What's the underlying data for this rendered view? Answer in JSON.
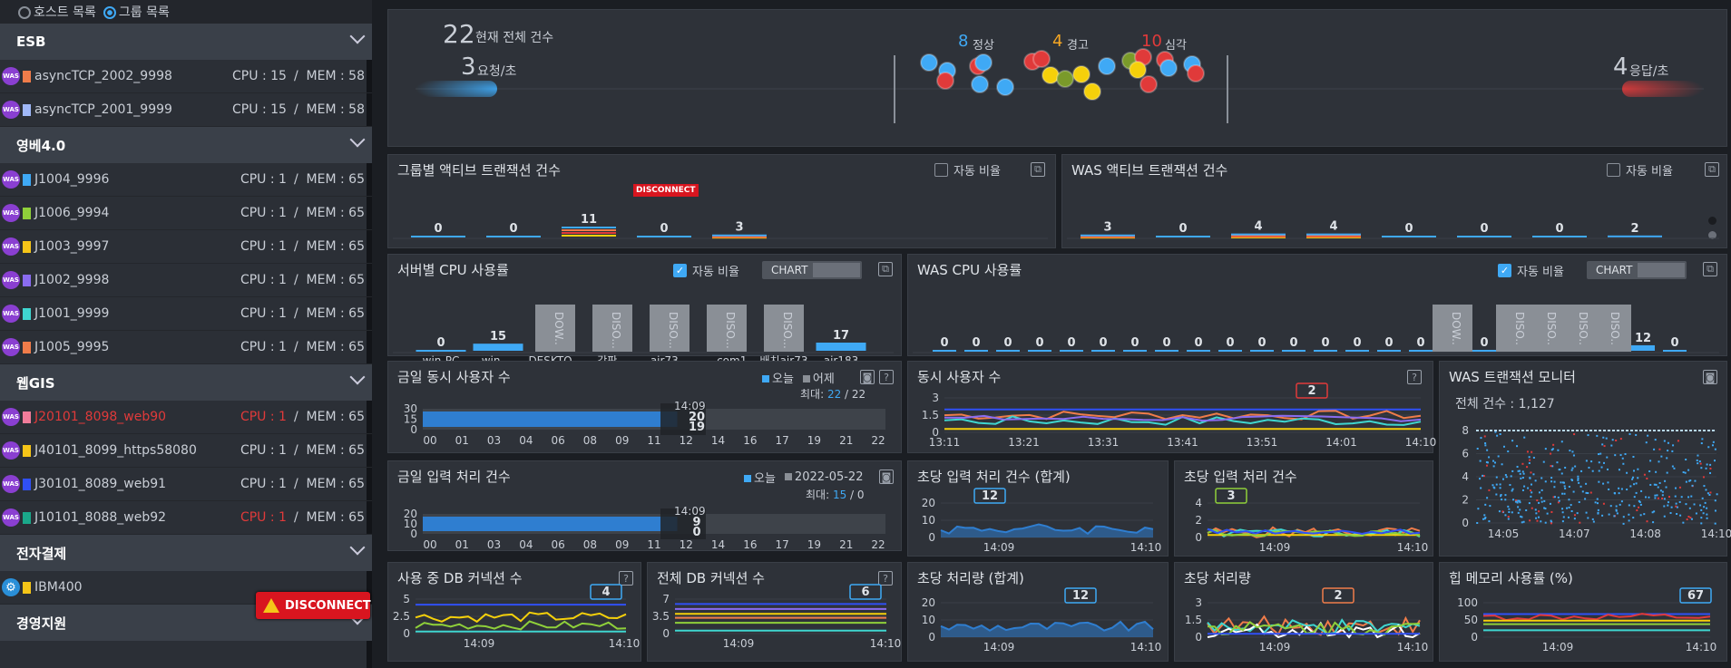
{
  "sidebar": {
    "radio_host": "호스트 목록",
    "radio_group": "그룹 목록",
    "groups": [
      {
        "name": "ESB",
        "hosts": [
          {
            "name": "asyncTCP_2002_9998",
            "color": "#f07c4a",
            "cpu": "CPU : 15",
            "mem": "/  MEM : 58",
            "alert": false
          },
          {
            "name": "asyncTCP_2001_9999",
            "color": "#a0b8f8",
            "cpu": "CPU : 15",
            "mem": "/  MEM : 58",
            "alert": false
          }
        ]
      },
      {
        "name": "영베4.0",
        "hosts": [
          {
            "name": "J1004_9996",
            "color": "#3fa9f5",
            "cpu": "CPU : 1",
            "mem": "/  MEM : 65"
          },
          {
            "name": "J1006_9994",
            "color": "#8fd03a",
            "cpu": "CPU : 1",
            "mem": "/  MEM : 65"
          },
          {
            "name": "J1003_9997",
            "color": "#f5c518",
            "cpu": "CPU : 1",
            "mem": "/  MEM : 65"
          },
          {
            "name": "J1002_9998",
            "color": "#8a6cf0",
            "cpu": "CPU : 1",
            "mem": "/  MEM : 65"
          },
          {
            "name": "J1001_9999",
            "color": "#3fd6d0",
            "cpu": "CPU : 1",
            "mem": "/  MEM : 65"
          },
          {
            "name": "J1005_9995",
            "color": "#f07c4a",
            "cpu": "CPU : 1",
            "mem": "/  MEM : 65"
          }
        ]
      },
      {
        "name": "웹GIS",
        "hosts": [
          {
            "name": "J20101_8098_web90",
            "color": "#f07c9a",
            "cpu": "CPU : 1",
            "mem": "/  MEM : 65"
          },
          {
            "name": "J40101_8099_https58080",
            "color": "#f5c518",
            "cpu": "CPU : 1",
            "mem": "/  MEM : 65"
          },
          {
            "name": "J30101_8089_web91",
            "color": "#3050f5",
            "cpu": "CPU : 1",
            "mem": "/  MEM : 65"
          },
          {
            "name": "J10101_8088_web92",
            "color": "#1aa88a",
            "cpu": "CPU : 1",
            "mem": "/  MEM : 65"
          }
        ]
      },
      {
        "name": "전자결제",
        "hosts": [
          {
            "name": "IBM400",
            "color": "#f5c518"
          }
        ]
      },
      {
        "name": "경영지원",
        "hosts": []
      }
    ],
    "disconnect": "DISCONNECT"
  },
  "summary": {
    "total": "22",
    "total_label": "현재 전체 건수",
    "req": "3",
    "req_label": "요청/초",
    "resp": "4",
    "resp_label": "응답/초",
    "normal": "8",
    "normal_label": "정상",
    "warn": "4",
    "warn_label": "경고",
    "crit": "10",
    "crit_label": "심각"
  },
  "panels": {
    "group_active": "그룹별 액티브 트랜잭션 건수",
    "was_active": "WAS 액티브 트랜잭션 건수",
    "auto_ratio": "자동 비율",
    "server_cpu": "서버별 CPU 사용률",
    "was_cpu": "WAS CPU 사용률",
    "chart": "CHART",
    "today_users": "금일 동시 사용자 수",
    "concurrent_users": "동시 사용자 수",
    "was_tx_monitor": "WAS 트랜잭션 모니터",
    "today_input": "금일 입력 처리 건수",
    "tps_sum": "초당 입력 처리 건수 (합계)",
    "tps": "초당 입력 처리 건수",
    "db_used": "사용 중 DB 커넥션 수",
    "db_total": "전체 DB 커넥션 수",
    "throughput_sum": "초당 처리량 (합계)",
    "throughput": "초당 처리량",
    "heap": "힙 메모리 사용률 (%)",
    "today": "오늘",
    "yesterday": "어제",
    "date": "2022-05-22",
    "max_label": "최대:",
    "max1": "22",
    "max1b": " / 22",
    "max2": "15",
    "max2b": " / 0",
    "total_count": "전체 건수 : 1,127",
    "disconnect_badge": "DISCONNECT",
    "t1409": "14:09",
    "t1410": "14:10",
    "t1409b": "14:09"
  },
  "chart_data": [
    {
      "type": "bar",
      "title": "그룹별 액티브 트랜잭션 건수",
      "values": [
        0,
        0,
        11,
        0,
        3
      ]
    },
    {
      "type": "bar",
      "title": "WAS 액티브 트랜잭션 건수",
      "values": [
        3,
        0,
        4,
        4,
        0,
        0,
        0,
        2
      ]
    },
    {
      "type": "bar",
      "title": "서버별 CPU 사용률",
      "categories": [
        "win-PC",
        "win-...",
        "DESKTO...",
        "강판...",
        "ajr73...",
        "...com1",
        "배치ajr73",
        "ajr183"
      ],
      "values": [
        0,
        15,
        "DOW..",
        "DISO...",
        "DISO...",
        "DISO...",
        "DISO...",
        17
      ]
    },
    {
      "type": "bar",
      "title": "WAS CPU 사용률",
      "values": [
        0,
        0,
        0,
        0,
        0,
        0,
        0,
        0,
        0,
        0,
        0,
        0,
        0,
        0,
        0,
        0,
        "DOW..",
        0,
        "DISO..",
        "DISO..",
        "DISO..",
        "DISO..",
        12,
        0
      ]
    },
    {
      "type": "area",
      "title": "금일 동시 사용자 수",
      "x": [
        "00",
        "01",
        "03",
        "04",
        "06",
        "08",
        "09",
        "11",
        "12",
        "14",
        "16",
        "17",
        "19",
        "21",
        "22"
      ],
      "ylim": [
        0,
        30
      ],
      "yticks": [
        0,
        15,
        30
      ],
      "cursor": {
        "time": "14:09",
        "today": 20,
        "yesterday": 19
      }
    },
    {
      "type": "line",
      "title": "동시 사용자 수",
      "x": [
        "13:11",
        "13:21",
        "13:31",
        "13:41",
        "13:51",
        "14:01",
        "14:10"
      ],
      "ylim": [
        0,
        3
      ],
      "yticks": [
        0,
        1.5,
        3
      ],
      "tooltip": 2
    },
    {
      "type": "scatter",
      "title": "WAS 트랜잭션 모니터",
      "x": [
        "14:05",
        "14:07",
        "14:08",
        "14:10"
      ],
      "ylim": [
        0,
        8
      ],
      "yticks": [
        0,
        2,
        4,
        6,
        8
      ]
    },
    {
      "type": "area",
      "title": "금일 입력 처리 건수",
      "x": [
        "00",
        "01",
        "03",
        "04",
        "06",
        "08",
        "09",
        "11",
        "12",
        "14",
        "16",
        "17",
        "19",
        "21",
        "22"
      ],
      "ylim": [
        0,
        20
      ],
      "yticks": [
        0,
        10,
        20
      ],
      "cursor": {
        "time": "14:09",
        "today": 9,
        "yesterday": 0
      }
    },
    {
      "type": "area",
      "title": "초당 입력 처리 건수 (합계)",
      "ylim": [
        0,
        20
      ],
      "yticks": [
        0,
        10,
        20
      ],
      "tooltip": 12
    },
    {
      "type": "line",
      "title": "초당 입력 처리 건수",
      "ylim": [
        0,
        4
      ],
      "yticks": [
        0,
        2,
        4
      ],
      "tooltip": 3
    },
    {
      "type": "line",
      "title": "사용 중 DB 커넥션 수",
      "yticks": [
        0,
        2.5,
        5
      ],
      "tooltip": 4
    },
    {
      "type": "line",
      "title": "전체 DB 커넥션 수",
      "yticks": [
        0,
        3.5,
        7
      ],
      "tooltip": 6
    },
    {
      "type": "area",
      "title": "초당 처리량 (합계)",
      "yticks": [
        0,
        10,
        20
      ],
      "tooltip": 12
    },
    {
      "type": "line",
      "title": "초당 처리량",
      "yticks": [
        0,
        1.5,
        3
      ],
      "tooltip": 2
    },
    {
      "type": "line",
      "title": "힙 메모리 사용률 (%)",
      "yticks": [
        0,
        50,
        100
      ],
      "tooltip": 67
    }
  ]
}
